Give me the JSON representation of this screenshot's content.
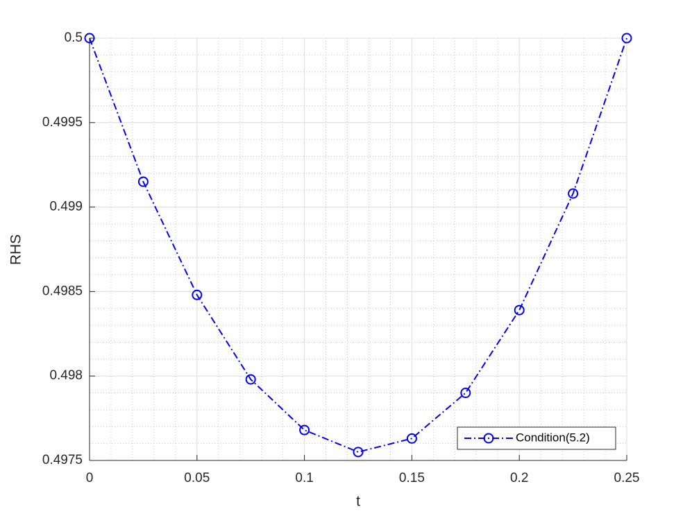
{
  "chart_data": {
    "type": "line",
    "x_label": "t",
    "y_label": "RHS",
    "x": [
      0,
      0.025,
      0.05,
      0.075,
      0.1,
      0.125,
      0.15,
      0.175,
      0.2,
      0.225,
      0.25
    ],
    "series": [
      {
        "name": "Condition(5.2)",
        "color": "#0000ff",
        "values": [
          0.5,
          0.49915,
          0.49848,
          0.49798,
          0.49768,
          0.49755,
          0.49763,
          0.4979,
          0.49839,
          0.49908,
          0.5
        ]
      }
    ],
    "xlim": [
      0,
      0.25
    ],
    "xticks": [
      0,
      0.05,
      0.1,
      0.15,
      0.2,
      0.25
    ],
    "ylim": [
      0.4975,
      0.5
    ],
    "yticks": [
      0.4975,
      0.498,
      0.4985,
      0.499,
      0.4995,
      0.5
    ],
    "grid": true,
    "minor_grid": true,
    "legend": "southeast",
    "marker": "circle",
    "line_style": "dashdot"
  }
}
